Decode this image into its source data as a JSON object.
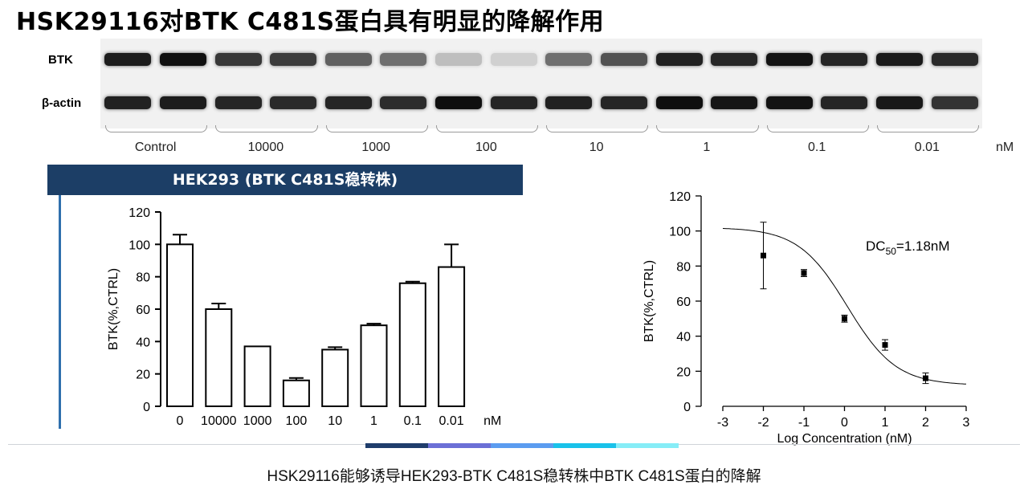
{
  "page": {
    "title": "HSK29116对BTK C481S蛋白具有明显的降解作用",
    "caption": "HSK29116能够诱导HEK293-BTK C481S稳转株中BTK C481S蛋白的降解"
  },
  "blot": {
    "row_labels": [
      "BTK",
      "β-actin"
    ],
    "groups": [
      "Control",
      "10000",
      "1000",
      "100",
      "10",
      "1",
      "0.1",
      "0.01"
    ],
    "unit": "nM",
    "band_intensity": {
      "BTK": [
        0.92,
        0.97,
        0.8,
        0.78,
        0.62,
        0.55,
        0.2,
        0.12,
        0.55,
        0.68,
        0.9,
        0.87,
        0.96,
        0.88,
        0.93,
        0.86
      ],
      "beta_actin": [
        0.9,
        0.92,
        0.88,
        0.86,
        0.88,
        0.85,
        0.98,
        0.88,
        0.9,
        0.88,
        0.98,
        0.95,
        0.96,
        0.88,
        0.94,
        0.82
      ]
    }
  },
  "cell_line_banner": "HEK293 (BTK C481S稳转株)",
  "chart_data": [
    {
      "type": "bar",
      "title": "",
      "xlabel": "",
      "x_unit": "nM",
      "ylabel": "BTK(%,CTRL)",
      "ylim": [
        0,
        120
      ],
      "yticks": [
        0,
        20,
        40,
        60,
        80,
        100,
        120
      ],
      "categories": [
        "0",
        "10000",
        "1000",
        "100",
        "10",
        "1",
        "0.1",
        "0.01"
      ],
      "values": [
        100,
        60,
        37,
        16,
        35,
        50,
        76,
        86
      ],
      "errors": [
        6,
        3.5,
        0,
        1.5,
        1.5,
        1,
        1,
        14
      ]
    },
    {
      "type": "scatter",
      "title": "",
      "xlabel": "Log Concentration (nM)",
      "ylabel": "BTK(%,CTRL)",
      "xlim": [
        -3,
        3
      ],
      "ylim": [
        0,
        120
      ],
      "xticks": [
        -3,
        -2,
        -1,
        0,
        1,
        2,
        3
      ],
      "yticks": [
        0,
        20,
        40,
        60,
        80,
        100,
        120
      ],
      "points": [
        {
          "x": -2,
          "y": 86,
          "err": 19
        },
        {
          "x": -1,
          "y": 76,
          "err": 2
        },
        {
          "x": 0,
          "y": 50,
          "err": 2
        },
        {
          "x": 1,
          "y": 35,
          "err": 3
        },
        {
          "x": 2,
          "y": 16,
          "err": 3
        }
      ],
      "fit": {
        "top": 102,
        "bottom": 12,
        "log_dc50": 0.07,
        "hill": 0.72
      },
      "annotation": {
        "prefix": "DC",
        "subscript": "50",
        "suffix": "=1.18nM"
      }
    }
  ],
  "accent_strip_colors": [
    "#1f3d6b",
    "#6b6fd6",
    "#5b9cf0",
    "#19c2ea",
    "#86edf7"
  ]
}
